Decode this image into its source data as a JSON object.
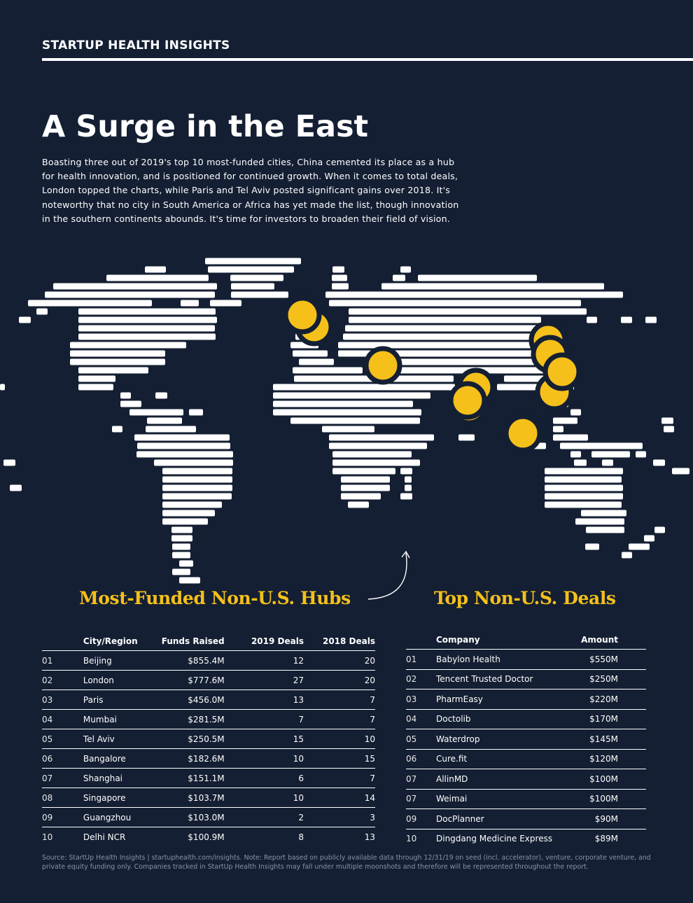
{
  "header": {
    "brand": "STARTUP HEALTH INSIGHTS"
  },
  "title": "A Surge in the East",
  "intro": "Boasting three out of 2019's top 10 most-funded cities, China cemented its place as a hub for health innovation, and is positioned for continued growth. When it comes to total deals, London topped the charts, while Paris and Tel Aviv posted significant gains over 2018. It's noteworthy that no city in South America or Africa has yet made the list, though innovation in the southern continents abounds. It's time for investors to broaden their field of vision.",
  "colors": {
    "background": "#141f33",
    "accent": "#f5c01a",
    "text": "#ffffff"
  },
  "map": {
    "type": "world-map-bars",
    "marker_color": "#f5c01a"
  },
  "hubs": {
    "title": "Most-Funded Non-U.S. Hubs",
    "columns": [
      "",
      "City/Region",
      "Funds Raised",
      "2019 Deals",
      "2018 Deals"
    ],
    "rows": [
      [
        "01",
        "Beijing",
        "$855.4M",
        "12",
        "20"
      ],
      [
        "02",
        "London",
        "$777.6M",
        "27",
        "20"
      ],
      [
        "03",
        "Paris",
        "$456.0M",
        "13",
        "7"
      ],
      [
        "04",
        "Mumbai",
        "$281.5M",
        "7",
        "7"
      ],
      [
        "05",
        "Tel Aviv",
        "$250.5M",
        "15",
        "10"
      ],
      [
        "06",
        "Bangalore",
        "$182.6M",
        "10",
        "15"
      ],
      [
        "07",
        "Shanghai",
        "$151.1M",
        "6",
        "7"
      ],
      [
        "08",
        "Singapore",
        "$103.7M",
        "10",
        "14"
      ],
      [
        "09",
        "Guangzhou",
        "$103.0M",
        "2",
        "3"
      ],
      [
        "10",
        "Delhi NCR",
        "$100.9M",
        "8",
        "13"
      ]
    ]
  },
  "deals": {
    "title": "Top Non-U.S. Deals",
    "columns": [
      "",
      "Company",
      "Amount"
    ],
    "rows": [
      [
        "01",
        "Babylon Health",
        "$550M"
      ],
      [
        "02",
        "Tencent Trusted Doctor",
        "$250M"
      ],
      [
        "03",
        "PharmEasy",
        "$220M"
      ],
      [
        "04",
        "Doctolib",
        "$170M"
      ],
      [
        "05",
        "Waterdrop",
        "$145M"
      ],
      [
        "06",
        "Cure.fit",
        "$120M"
      ],
      [
        "07",
        "AllinMD",
        "$100M"
      ],
      [
        "07",
        "Weimai",
        "$100M"
      ],
      [
        "09",
        "DocPlanner",
        "$90M"
      ],
      [
        "10",
        "Dingdang Medicine Express",
        "$89M"
      ]
    ]
  },
  "source": "Source: StartUp Health Insights | startuphealth.com/insights. Note: Report based on publicly available data through 12/31/19 on seed (incl. accelerator), venture, corporate venture, and private equity funding only. Companies tracked in StartUp Health Insights may fall under multiple moonshots and therefore will be represented throughout the report."
}
